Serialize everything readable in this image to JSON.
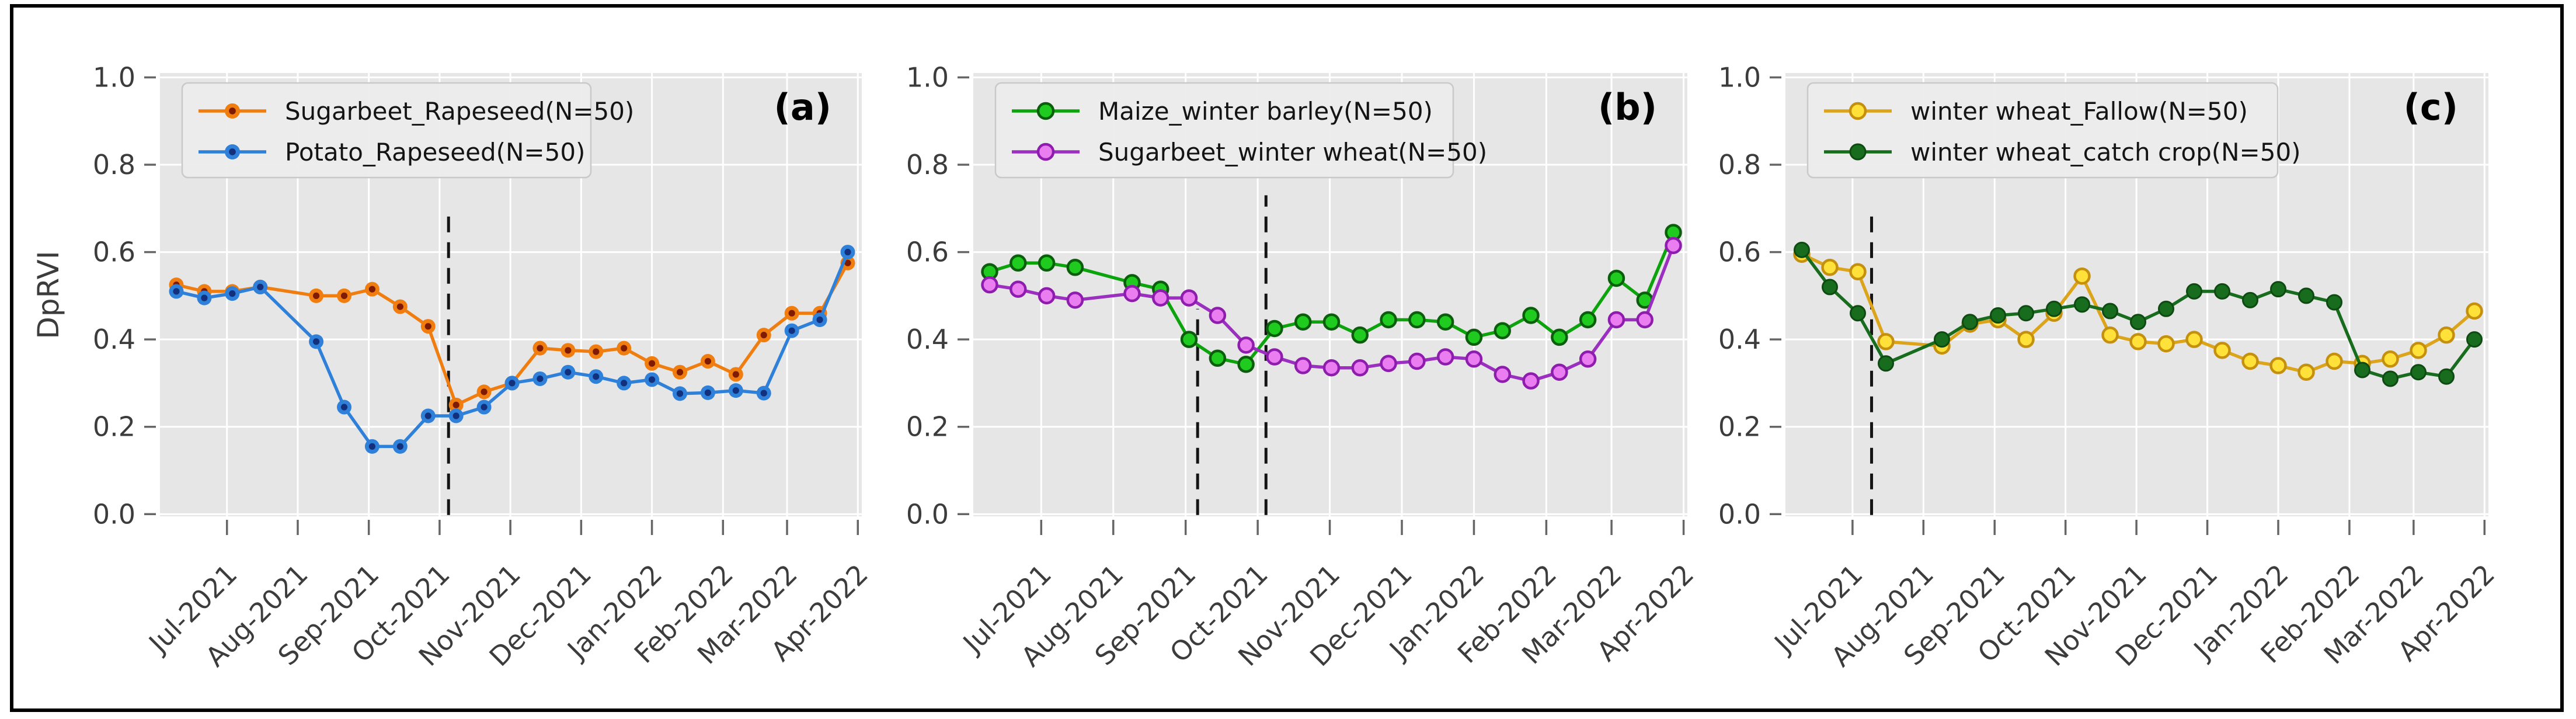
{
  "figure": {
    "background": "#ffffff",
    "frame_color": "#000000",
    "plot_background": "#e6e6e6",
    "grid_color": "#ffffff",
    "tick_label_color": "#3c3c3c",
    "axis_tick_color": "#666666",
    "dashed_line_color": "#141414",
    "legend_background": "#ececec",
    "legend_border": "#c9c9c9",
    "x_tick_labels": [
      "Jul-2021",
      "Aug-2021",
      "Sep-2021",
      "Oct-2021",
      "Nov-2021",
      "Dec-2021",
      "Jan-2022",
      "Feb-2022",
      "Mar-2022",
      "Apr-2022"
    ],
    "month_tick_positions": [
      1.81,
      4.34,
      6.88,
      9.41,
      11.94,
      14.47,
      17.0,
      19.54,
      21.83,
      24.36
    ],
    "y_tick_values": [
      0.0,
      0.2,
      0.4,
      0.6,
      0.8,
      1.0
    ],
    "y_tick_labels": [
      "0.0",
      "0.2",
      "0.4",
      "0.6",
      "0.8",
      "1.0"
    ]
  },
  "chart_data": [
    {
      "type": "line",
      "panel_label": "(a)",
      "ylabel": "DpRVI",
      "xlabel": "",
      "ylim": [
        0.0,
        1.0
      ],
      "grid": true,
      "legend_position": "upper left",
      "categories": [
        "Jul-2021",
        "Aug-2021",
        "Sep-2021",
        "Oct-2021",
        "Nov-2021",
        "Dec-2021",
        "Jan-2022",
        "Feb-2022",
        "Mar-2022",
        "Apr-2022"
      ],
      "dashed_vlines": [
        {
          "x": 9.73,
          "ymax": 0.69
        }
      ],
      "series": [
        {
          "name": "Sugarbeet_Rapeseed(N=50)",
          "color": "#f07d10",
          "marker": "dot-core",
          "marker_face": "#f07d10",
          "marker_core": "#7f1b03",
          "marker_edge": "#f07d10",
          "values": [
            0.525,
            0.51,
            0.51,
            0.52,
            null,
            0.5,
            0.5,
            0.515,
            0.475,
            0.43,
            0.25,
            0.28,
            0.3,
            0.38,
            0.375,
            0.372,
            0.38,
            0.345,
            0.325,
            0.35,
            0.32,
            0.41,
            0.46,
            0.46,
            0.575
          ]
        },
        {
          "name": "Potato_Rapeseed(N=50)",
          "color": "#2f80d9",
          "marker": "dot-core",
          "marker_face": "#2f80d9",
          "marker_core": "#13307d",
          "marker_edge": "#2f80d9",
          "values": [
            0.51,
            0.495,
            0.505,
            0.52,
            null,
            0.395,
            0.245,
            0.155,
            0.155,
            0.225,
            0.225,
            0.245,
            0.3,
            0.31,
            0.325,
            0.315,
            0.3,
            0.308,
            0.276,
            0.278,
            0.283,
            0.277,
            0.42,
            0.445,
            0.6
          ]
        }
      ]
    },
    {
      "type": "line",
      "panel_label": "(b)",
      "ylabel": "",
      "xlabel": "",
      "ylim": [
        0.0,
        1.0
      ],
      "grid": true,
      "legend_position": "upper left",
      "categories": [
        "Jul-2021",
        "Aug-2021",
        "Sep-2021",
        "Oct-2021",
        "Nov-2021",
        "Dec-2021",
        "Jan-2022",
        "Feb-2022",
        "Mar-2022",
        "Apr-2022"
      ],
      "dashed_vlines": [
        {
          "x": 7.3,
          "ymax": 0.47
        },
        {
          "x": 9.7,
          "ymax": 0.73
        }
      ],
      "series": [
        {
          "name": "Maize_winter barley(N=50)",
          "color": "#0ca30c",
          "marker": "ring",
          "marker_face": "#1ecb1e",
          "marker_core": "#0b5e0b",
          "marker_edge": "#0b5e0b",
          "values": [
            0.555,
            0.575,
            0.575,
            0.565,
            null,
            0.53,
            0.515,
            0.4,
            0.357,
            0.343,
            0.425,
            0.44,
            0.44,
            0.41,
            0.445,
            0.445,
            0.44,
            0.405,
            0.42,
            0.455,
            0.405,
            0.445,
            0.54,
            0.49,
            0.645
          ]
        },
        {
          "name": "Sugarbeet_winter wheat(N=50)",
          "color": "#9b2fc0",
          "marker": "ring",
          "marker_face": "#ea7df0",
          "marker_core": "#8e1cad",
          "marker_edge": "#8e1cad",
          "values": [
            0.525,
            0.515,
            0.5,
            0.49,
            null,
            0.505,
            0.495,
            0.495,
            0.455,
            0.387,
            0.36,
            0.34,
            0.335,
            0.335,
            0.345,
            0.35,
            0.36,
            0.355,
            0.32,
            0.305,
            0.325,
            0.355,
            0.445,
            0.445,
            0.615
          ]
        }
      ]
    },
    {
      "type": "line",
      "panel_label": "(c)",
      "ylabel": "",
      "xlabel": "",
      "ylim": [
        0.0,
        1.0
      ],
      "grid": true,
      "legend_position": "upper left",
      "categories": [
        "Jul-2021",
        "Aug-2021",
        "Sep-2021",
        "Oct-2021",
        "Nov-2021",
        "Dec-2021",
        "Jan-2022",
        "Feb-2022",
        "Mar-2022",
        "Apr-2022"
      ],
      "dashed_vlines": [
        {
          "x": 2.49,
          "ymax": 0.69
        }
      ],
      "series": [
        {
          "name": "winter wheat_Fallow(N=50)",
          "color": "#dca41a",
          "marker": "ring",
          "marker_face": "#ffe13a",
          "marker_core": "#c4900e",
          "marker_edge": "#c4900e",
          "values": [
            0.595,
            0.565,
            0.555,
            0.395,
            null,
            0.385,
            0.435,
            0.445,
            0.4,
            0.46,
            0.545,
            0.41,
            0.395,
            0.39,
            0.4,
            0.375,
            0.35,
            0.34,
            0.325,
            0.35,
            0.345,
            0.355,
            0.375,
            0.41,
            0.465
          ]
        },
        {
          "name": "winter wheat_catch crop(N=50)",
          "color": "#176c1d",
          "marker": "solid",
          "marker_face": "#176c1d",
          "marker_core": "#0e4a12",
          "marker_edge": "#0e4a12",
          "values": [
            0.605,
            0.52,
            0.46,
            0.345,
            null,
            0.4,
            0.44,
            0.455,
            0.46,
            0.47,
            0.48,
            0.465,
            0.44,
            0.47,
            0.51,
            0.51,
            0.49,
            0.515,
            0.5,
            0.485,
            0.33,
            0.31,
            0.325,
            0.315,
            0.4
          ]
        }
      ]
    }
  ]
}
